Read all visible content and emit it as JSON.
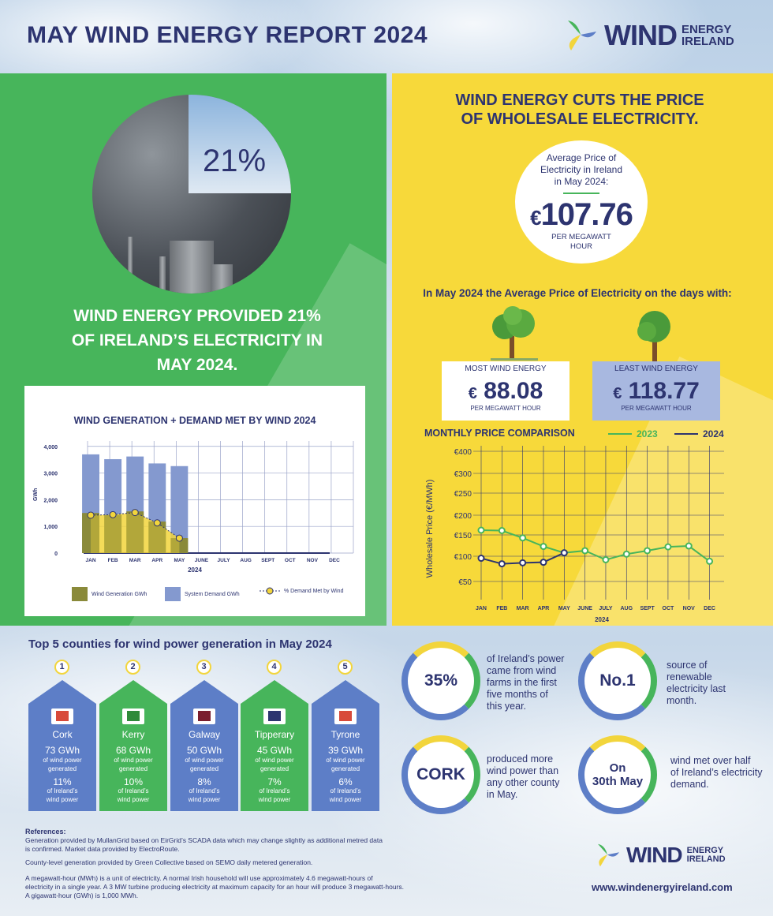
{
  "header": {
    "title": "MAY WIND ENERGY REPORT 2024",
    "logo_word": "WIND",
    "logo_sub1": "ENERGY",
    "logo_sub2": "IRELAND"
  },
  "green_panel": {
    "photo_percent": "21%",
    "headline_l1": "WIND ENERGY PROVIDED 21%",
    "headline_l2": "OF IRELAND’S ELECTRICITY IN",
    "headline_l3": "MAY 2024."
  },
  "colors": {
    "green": "#47b55b",
    "yellow": "#f7d93a",
    "navy": "#2d3470",
    "blue_bar": "#8499cf",
    "olive": "#8a8a3a"
  },
  "yellow_panel": {
    "title_l1": "WIND ENERGY CUTS THE PRICE",
    "title_l2": "OF WHOLESALE ELECTRICITY.",
    "avg_l1": "Average Price of",
    "avg_l2": "Electricity in Ireland",
    "avg_l3": "in May 2024:",
    "currency": "€",
    "avg_price": "107.76",
    "avg_unit_l1": "PER MEGAWATT",
    "avg_unit_l2": "HOUR",
    "days_line": "In May 2024 the Average Price of Electricity on the days with:",
    "most": {
      "label": "MOST WIND ENERGY",
      "price": "88.08",
      "unit": "PER MEGAWATT HOUR"
    },
    "least": {
      "label": "LEAST WIND ENERGY",
      "price": "118.77",
      "unit": "PER MEGAWATT HOUR"
    }
  },
  "counties_title": "Top 5 counties for wind power generation in May 2024",
  "counties": [
    {
      "rank": "1",
      "name": "Cork",
      "gwh": "73 GWh",
      "desc1": "of wind power",
      "desc2": "generated",
      "pct": "11%",
      "pdesc1": "of Ireland’s",
      "pdesc2": "wind power"
    },
    {
      "rank": "2",
      "name": "Kerry",
      "gwh": "68 GWh",
      "desc1": "of wind power",
      "desc2": "generated",
      "pct": "10%",
      "pdesc1": "of Ireland’s",
      "pdesc2": "wind power"
    },
    {
      "rank": "3",
      "name": "Galway",
      "gwh": "50 GWh",
      "desc1": "of wind power",
      "desc2": "generated",
      "pct": "8%",
      "pdesc1": "of Ireland’s",
      "pdesc2": "wind power"
    },
    {
      "rank": "4",
      "name": "Tipperary",
      "gwh": "45 GWh",
      "desc1": "of wind power",
      "desc2": "generated",
      "pct": "7%",
      "pdesc1": "of Ireland’s",
      "pdesc2": "wind power"
    },
    {
      "rank": "5",
      "name": "Tyrone",
      "gwh": "39 GWh",
      "desc1": "of wind power",
      "desc2": "generated",
      "pct": "6%",
      "pdesc1": "of Ireland’s",
      "pdesc2": "wind power"
    }
  ],
  "facts": [
    {
      "ring": "35%",
      "l1": "of Ireland’s power",
      "l2": "came from wind",
      "l3": "farms in the first",
      "l4": "five months of",
      "l5": "this year."
    },
    {
      "ring": "No.1",
      "l1": "source of",
      "l2": "renewable",
      "l3": "electricity last",
      "l4": "month.",
      "l5": ""
    },
    {
      "ring": "CORK",
      "l1": "produced more",
      "l2": "wind power than",
      "l3": "any other county",
      "l4": "in May.",
      "l5": ""
    },
    {
      "ring_l1": "On",
      "ring_l2": "30th May",
      "l1": "wind met over half",
      "l2": "of Ireland’s electricity",
      "l3": "demand.",
      "l4": "",
      "l5": ""
    }
  ],
  "footer": {
    "ref_title": "References:",
    "r1": "Generation provided by MullanGrid based on EirGrid’s SCADA data which may change slightly as additional metred data",
    "r2": " is confirmed. Market data provided by ElectroRoute.",
    "r3": "County-level generation provided by Green Collective based on SEMO daily metered generation.",
    "r4": "A megawatt-hour (MWh) is a unit of electricity. A normal Irish household will use approximately 4.6 megawatt-hours of",
    "r5": "electricity in a single year. A 3 MW turbine producing electricity at maximum capacity for an hour will produce 3 megawatt-hours.",
    "r6": "A gigawatt-hour (GWh) is 1,000 MWh.",
    "url": "www.windenergyireland.com"
  },
  "chart_data": [
    {
      "type": "bar",
      "title": "WIND GENERATION + DEMAND MET BY WIND 2024",
      "ylabel": "GWh",
      "xlabel": "2024",
      "categories": [
        "JAN",
        "FEB",
        "MAR",
        "APR",
        "MAY",
        "JUNE",
        "JULY",
        "AUG",
        "SEPT",
        "OCT",
        "NOV",
        "DEC"
      ],
      "yticks": [
        "0",
        "1,000",
        "2,000",
        "3,000",
        "4,000"
      ],
      "ylim": [
        0,
        4200
      ],
      "series": [
        {
          "name": "Wind Generation GWh",
          "values": [
            1500,
            1420,
            1560,
            1180,
            560,
            null,
            null,
            null,
            null,
            null,
            null,
            null
          ]
        },
        {
          "name": "System Demand GWh",
          "values": [
            3700,
            3520,
            3620,
            3360,
            3260,
            null,
            null,
            null,
            null,
            null,
            null,
            null
          ]
        },
        {
          "name": "% Demand Met by Wind",
          "values": [
            1420,
            1440,
            1520,
            1130,
            560,
            null,
            null,
            null,
            null,
            null,
            null,
            null
          ]
        }
      ]
    },
    {
      "type": "line",
      "title": "MONTHLY PRICE COMPARISON",
      "ylabel": "Wholesale Price (€/MWh)",
      "xlabel": "2024",
      "categories": [
        "JAN",
        "FEB",
        "MAR",
        "APR",
        "MAY",
        "JUNE",
        "JULY",
        "AUG",
        "SEPT",
        "OCT",
        "NOV",
        "DEC"
      ],
      "yticks": [
        "€50",
        "€100",
        "€150",
        "€200",
        "€250",
        "€300",
        "€400"
      ],
      "series": [
        {
          "name": "2023",
          "color": "#47b55b",
          "values": [
            162,
            161,
            143,
            123,
            108,
            113,
            93,
            105,
            113,
            122,
            124,
            90
          ]
        },
        {
          "name": "2024",
          "color": "#2d3470",
          "values": [
            96,
            85,
            87,
            88,
            108,
            null,
            null,
            null,
            null,
            null,
            null,
            null
          ]
        }
      ]
    }
  ]
}
